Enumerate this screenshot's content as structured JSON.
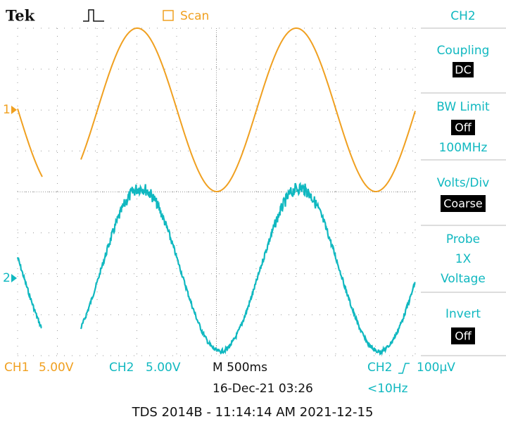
{
  "header": {
    "brand": "Tek",
    "mode": "Scan",
    "channel": "CH2"
  },
  "markers": {
    "ch1": "1",
    "ch2": "2"
  },
  "menu": {
    "coupling": {
      "label": "Coupling",
      "value": "DC"
    },
    "bw_limit": {
      "label": "BW Limit",
      "value": "Off",
      "extra": "100MHz"
    },
    "volts_div": {
      "label": "Volts/Div",
      "value": "Coarse"
    },
    "probe": {
      "label": "Probe",
      "lines": [
        "1X",
        "Voltage"
      ]
    },
    "invert": {
      "label": "Invert",
      "value": "Off"
    }
  },
  "status": {
    "ch1": "CH1",
    "ch1_scale": "5.00V",
    "ch2": "CH2",
    "ch2_scale": "5.00V",
    "timebase": "M 500ms",
    "trigger_source": "CH2",
    "trigger_level": "100µV",
    "date": "16-Dec-21 03:26",
    "frequency": "<10Hz"
  },
  "caption": "TDS 2014B - 11:14:14 AM   2021-12-15"
}
